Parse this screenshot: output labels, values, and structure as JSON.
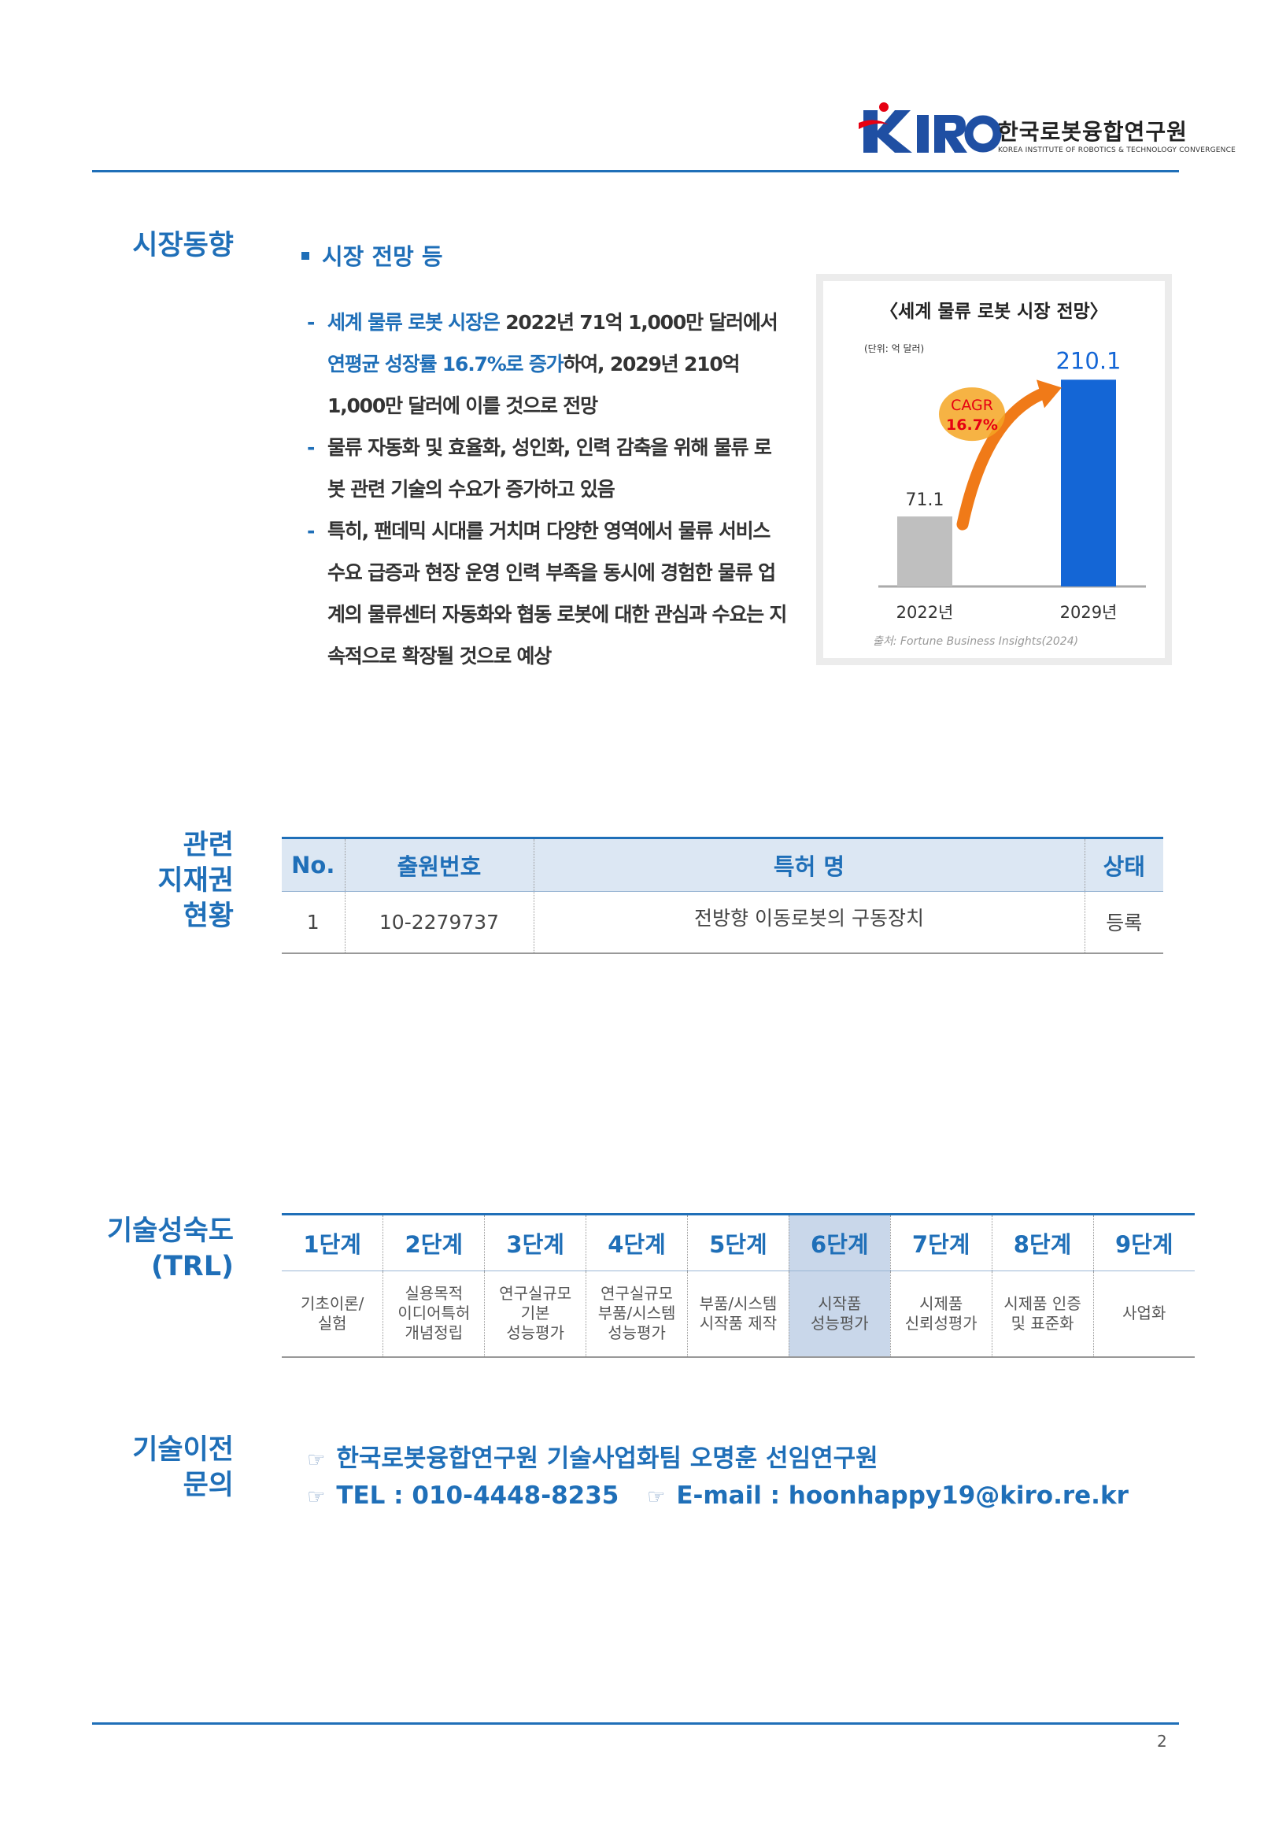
{
  "header": {
    "logo_text": "KIRO",
    "org_name": "한국로봇융합연구원",
    "org_subtitle": "KOREA INSTITUTE OF ROBOTICS & TECHNOLOGY CONVERGENCE"
  },
  "market": {
    "label": "시장동향",
    "heading": "시장 전망 등",
    "items": [
      {
        "dash": "-",
        "parts": [
          {
            "text": "세계 물류 로봇 시장은",
            "hl": true
          },
          {
            "text": " 2022년 71억 1,000만 달러에서 ",
            "hl": false
          },
          {
            "text": "연평균 성장률 16.7%로 증가",
            "hl": true
          },
          {
            "text": "하여, 2029년 210억 1,000만 달러에 이를 것으로 전망",
            "hl": false
          }
        ]
      },
      {
        "dash": "-",
        "parts": [
          {
            "text": "물류 자동화 및 효율화, 성인화, 인력 감축을 위해 물류 로봇 관련 기술의 수요가 증가하고 있음",
            "hl": false
          }
        ]
      },
      {
        "dash": "-",
        "parts": [
          {
            "text": "특히, 팬데믹 시대를 거치며 다양한 영역에서 물류 서비스 수요 급증과 현장 운영 인력 부족을 동시에 경험한 물류 업계의 물류센터 자동화와 협동 로봇에 대한 관심과 수요는 지속적으로 확장될 것으로 예상",
            "hl": false
          }
        ]
      }
    ]
  },
  "chart_data": {
    "type": "bar",
    "title": "〈세계 물류 로봇 시장 전망〉",
    "unit_note": "(단위: 억 달러)",
    "categories": [
      "2022년",
      "2029년"
    ],
    "values": [
      71.1,
      210.1
    ],
    "value_labels": [
      "71.1",
      "210.1"
    ],
    "bar_colors": [
      "#bfbfbf",
      "#1466d6"
    ],
    "value_label_colors": [
      "#333333",
      "#1466d6"
    ],
    "annotation": {
      "line1": "CAGR",
      "line2": "16.7%",
      "text_color": "#e60012",
      "bg_color": "#f5a623",
      "arrow_color": "#f07a18"
    },
    "source": "출처: Fortune Business Insights(2024)",
    "ylim": [
      0,
      240
    ]
  },
  "patent": {
    "label_lines": [
      "관련",
      "지재권",
      "현황"
    ],
    "headers": [
      "No.",
      "출원번호",
      "특허 명",
      "상태"
    ],
    "rows": [
      [
        "1",
        "10-2279737",
        "전방향 이동로봇의 구동장치",
        "등록"
      ]
    ]
  },
  "trl": {
    "label_lines": [
      "기술성숙도",
      "(TRL)"
    ],
    "active_index": 5,
    "stages": [
      {
        "stage": "1단계",
        "desc": [
          "기초이론/",
          "실험"
        ]
      },
      {
        "stage": "2단계",
        "desc": [
          "실용목적",
          "이디어특허",
          "개념정립"
        ]
      },
      {
        "stage": "3단계",
        "desc": [
          "연구실규모",
          "기본",
          "성능평가"
        ]
      },
      {
        "stage": "4단계",
        "desc": [
          "연구실규모",
          "부품/시스템",
          "성능평가"
        ]
      },
      {
        "stage": "5단계",
        "desc": [
          "부품/시스템",
          "시작품 제작"
        ]
      },
      {
        "stage": "6단계",
        "desc": [
          "시작품",
          "성능평가"
        ]
      },
      {
        "stage": "7단계",
        "desc": [
          "시제품",
          "신뢰성평가"
        ]
      },
      {
        "stage": "8단계",
        "desc": [
          "시제품 인증",
          "및 표준화"
        ]
      },
      {
        "stage": "9단계",
        "desc": [
          "사업화"
        ]
      }
    ]
  },
  "contact": {
    "label_lines": [
      "기술이전",
      "문의"
    ],
    "icon": "pointing-hand-icon",
    "name_line": "한국로봇융합연구원 기술사업화팀 오명훈 선임연구원",
    "tel": "TEL : 010-4448-8235",
    "email": "E-mail : hoonhappy19@kiro.re.kr"
  },
  "footer": {
    "page_number": "2"
  },
  "colors": {
    "accent": "#1f6fb8",
    "header_fill": "#dce7f3",
    "active_stage": "#c9d7ea"
  }
}
